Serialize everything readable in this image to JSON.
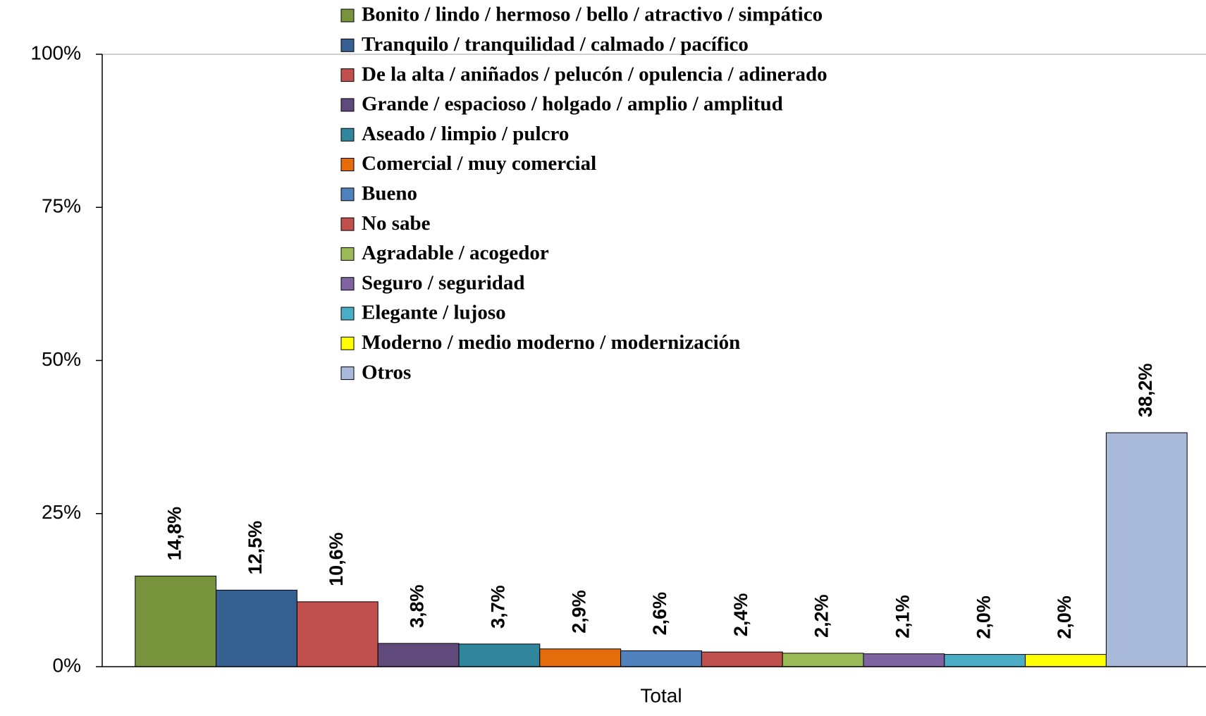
{
  "chart_data": {
    "type": "bar",
    "categories": [
      "Total"
    ],
    "series": [
      {
        "name": "Bonito / lindo / hermoso / bello / atractivo / simpático",
        "color": "#77933c",
        "values": [
          14.8
        ],
        "value_labels": [
          "14,8%"
        ]
      },
      {
        "name": "Tranquilo / tranquilidad / calmado / pacífico",
        "color": "#376092",
        "values": [
          12.5
        ],
        "value_labels": [
          "12,5%"
        ]
      },
      {
        "name": "De la alta / aniñados / pelucón / opulencia / adinerado",
        "color": "#c0504d",
        "values": [
          10.6
        ],
        "value_labels": [
          "10,6%"
        ]
      },
      {
        "name": "Grande / espacioso / holgado / amplio / amplitud",
        "color": "#604a7b",
        "values": [
          3.8
        ],
        "value_labels": [
          "3,8%"
        ]
      },
      {
        "name": "Aseado / limpio / pulcro",
        "color": "#31859c",
        "values": [
          3.7
        ],
        "value_labels": [
          "3,7%"
        ]
      },
      {
        "name": "Comercial / muy comercial",
        "color": "#e46c0a",
        "values": [
          2.9
        ],
        "value_labels": [
          "2,9%"
        ]
      },
      {
        "name": "Bueno",
        "color": "#4f81bd",
        "values": [
          2.6
        ],
        "value_labels": [
          "2,6%"
        ]
      },
      {
        "name": "No sabe",
        "color": "#c0504d",
        "values": [
          2.4
        ],
        "value_labels": [
          "2,4%"
        ]
      },
      {
        "name": "Agradable / acogedor",
        "color": "#9bbb59",
        "values": [
          2.2
        ],
        "value_labels": [
          "2,2%"
        ]
      },
      {
        "name": "Seguro / seguridad",
        "color": "#8064a2",
        "values": [
          2.1
        ],
        "value_labels": [
          "2,1%"
        ]
      },
      {
        "name": "Elegante / lujoso",
        "color": "#4bacc6",
        "values": [
          2.0
        ],
        "value_labels": [
          "2,0%"
        ]
      },
      {
        "name": "Moderno / medio moderno / modernización",
        "color": "#ffff00",
        "values": [
          2.0
        ],
        "value_labels": [
          "2,0%"
        ]
      },
      {
        "name": "Otros",
        "color": "#a9b9d9",
        "values": [
          38.2
        ],
        "value_labels": [
          "38,2%"
        ]
      }
    ],
    "ylim": [
      0,
      100
    ],
    "yticks": [
      {
        "value": 0,
        "label": "0%"
      },
      {
        "value": 25,
        "label": "25%"
      },
      {
        "value": 50,
        "label": "50%"
      },
      {
        "value": 75,
        "label": "75%"
      },
      {
        "value": 100,
        "label": "100%"
      }
    ],
    "grid": false
  }
}
